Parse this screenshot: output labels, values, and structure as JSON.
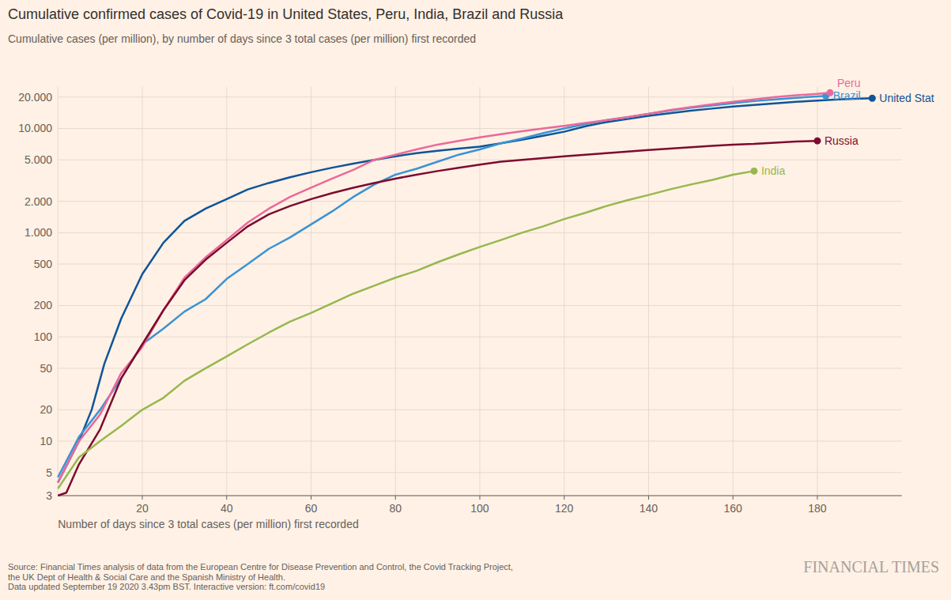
{
  "chart_data": {
    "type": "line",
    "title": "Cumulative confirmed cases of Covid-19 in United States, Peru, India, Brazil and Russia",
    "subtitle": "Cumulative cases (per million), by number of days since 3 total cases (per million) first recorded",
    "x_label": "Number of days since 3 total cases (per million) first recorded",
    "source": [
      "Source: Financial Times analysis of data from the European Centre for Disease Prevention and Control, the Covid Tracking Project,",
      "the UK Dept of Health & Social Care and the Spanish Ministry of Health.",
      "Data updated September 19 2020 3.43pm BST. Interactive version: ft.com/covid19"
    ],
    "brand": "FINANCIAL TIMES",
    "log": "y",
    "grid": true,
    "marker": "end-dot",
    "xlim": [
      0,
      200
    ],
    "xticks": [
      20,
      40,
      60,
      80,
      100,
      120,
      140,
      160,
      180
    ],
    "ylim": [
      3,
      25000
    ],
    "yticks": [
      3,
      5,
      10,
      20,
      50,
      100,
      200,
      500,
      {
        "value": 1000,
        "label": "1.000"
      },
      {
        "value": 2000,
        "label": "2.000"
      },
      {
        "value": 5000,
        "label": "5.000"
      },
      {
        "value": 10000,
        "label": "10.000"
      },
      {
        "value": 20000,
        "label": "20.000"
      }
    ],
    "series": [
      {
        "name": "United Stat",
        "color": "#0f5499",
        "x": [
          0,
          5,
          8,
          11,
          15,
          20,
          25,
          30,
          35,
          40,
          45,
          50,
          55,
          60,
          65,
          70,
          75,
          80,
          85,
          90,
          95,
          100,
          105,
          110,
          115,
          120,
          125,
          130,
          135,
          140,
          145,
          150,
          155,
          160,
          165,
          170,
          175,
          180,
          185,
          193
        ],
        "values": [
          4,
          10,
          20,
          55,
          150,
          400,
          800,
          1300,
          1700,
          2100,
          2600,
          3000,
          3400,
          3800,
          4200,
          4600,
          5000,
          5400,
          5800,
          6100,
          6400,
          6700,
          7200,
          7800,
          8500,
          9300,
          10500,
          11500,
          12300,
          13200,
          14000,
          14800,
          15500,
          16200,
          16800,
          17400,
          18000,
          18500,
          19000,
          19500
        ]
      },
      {
        "name": "Brazil",
        "color": "#3a93d3",
        "x": [
          0,
          5,
          10,
          15,
          20,
          25,
          30,
          35,
          40,
          45,
          50,
          55,
          60,
          65,
          70,
          75,
          80,
          85,
          90,
          95,
          100,
          105,
          110,
          115,
          120,
          125,
          130,
          135,
          140,
          145,
          150,
          155,
          160,
          165,
          170,
          175,
          180,
          182
        ],
        "values": [
          4.5,
          11,
          20,
          40,
          85,
          120,
          175,
          230,
          360,
          500,
          700,
          900,
          1200,
          1600,
          2200,
          2900,
          3600,
          4100,
          4800,
          5600,
          6300,
          7200,
          8000,
          9000,
          10000,
          11000,
          12000,
          12800,
          13800,
          14800,
          15800,
          16600,
          17500,
          18300,
          19000,
          19700,
          20300,
          20500
        ]
      },
      {
        "name": "Peru",
        "color": "#e9699a",
        "x": [
          0,
          5,
          10,
          15,
          20,
          25,
          30,
          35,
          40,
          45,
          50,
          55,
          60,
          65,
          70,
          75,
          80,
          85,
          90,
          95,
          100,
          105,
          110,
          115,
          120,
          125,
          130,
          135,
          140,
          145,
          150,
          155,
          160,
          165,
          170,
          175,
          180,
          183
        ],
        "values": [
          4,
          10,
          18,
          45,
          80,
          180,
          370,
          580,
          850,
          1250,
          1700,
          2200,
          2700,
          3300,
          4000,
          5000,
          5600,
          6300,
          7000,
          7600,
          8200,
          8800,
          9400,
          10000,
          10600,
          11300,
          12000,
          12800,
          13800,
          15000,
          16000,
          17000,
          18000,
          19000,
          20000,
          20800,
          21500,
          22000
        ]
      },
      {
        "name": "Russia",
        "color": "#7d0b2f",
        "x": [
          0,
          2,
          5,
          10,
          15,
          20,
          25,
          30,
          35,
          40,
          45,
          50,
          55,
          60,
          65,
          70,
          75,
          80,
          85,
          90,
          95,
          100,
          105,
          110,
          115,
          120,
          125,
          130,
          135,
          140,
          145,
          150,
          155,
          160,
          165,
          170,
          175,
          180
        ],
        "values": [
          3,
          3.2,
          6,
          13,
          40,
          85,
          180,
          350,
          550,
          800,
          1150,
          1500,
          1800,
          2100,
          2400,
          2700,
          3000,
          3300,
          3600,
          3900,
          4200,
          4500,
          4800,
          5000,
          5200,
          5400,
          5600,
          5800,
          6000,
          6200,
          6400,
          6600,
          6800,
          7000,
          7100,
          7300,
          7500,
          7600
        ]
      },
      {
        "name": "India",
        "color": "#96b84f",
        "x": [
          0,
          5,
          10,
          15,
          20,
          25,
          30,
          35,
          40,
          45,
          50,
          55,
          60,
          65,
          70,
          75,
          80,
          85,
          90,
          95,
          100,
          105,
          110,
          115,
          120,
          125,
          130,
          135,
          140,
          145,
          150,
          155,
          160,
          165
        ],
        "values": [
          3.5,
          7,
          10,
          14,
          20,
          26,
          38,
          50,
          65,
          85,
          110,
          140,
          170,
          210,
          260,
          310,
          370,
          430,
          520,
          620,
          730,
          850,
          1000,
          1150,
          1350,
          1550,
          1800,
          2050,
          2300,
          2600,
          2900,
          3200,
          3600,
          3900
        ]
      }
    ]
  }
}
